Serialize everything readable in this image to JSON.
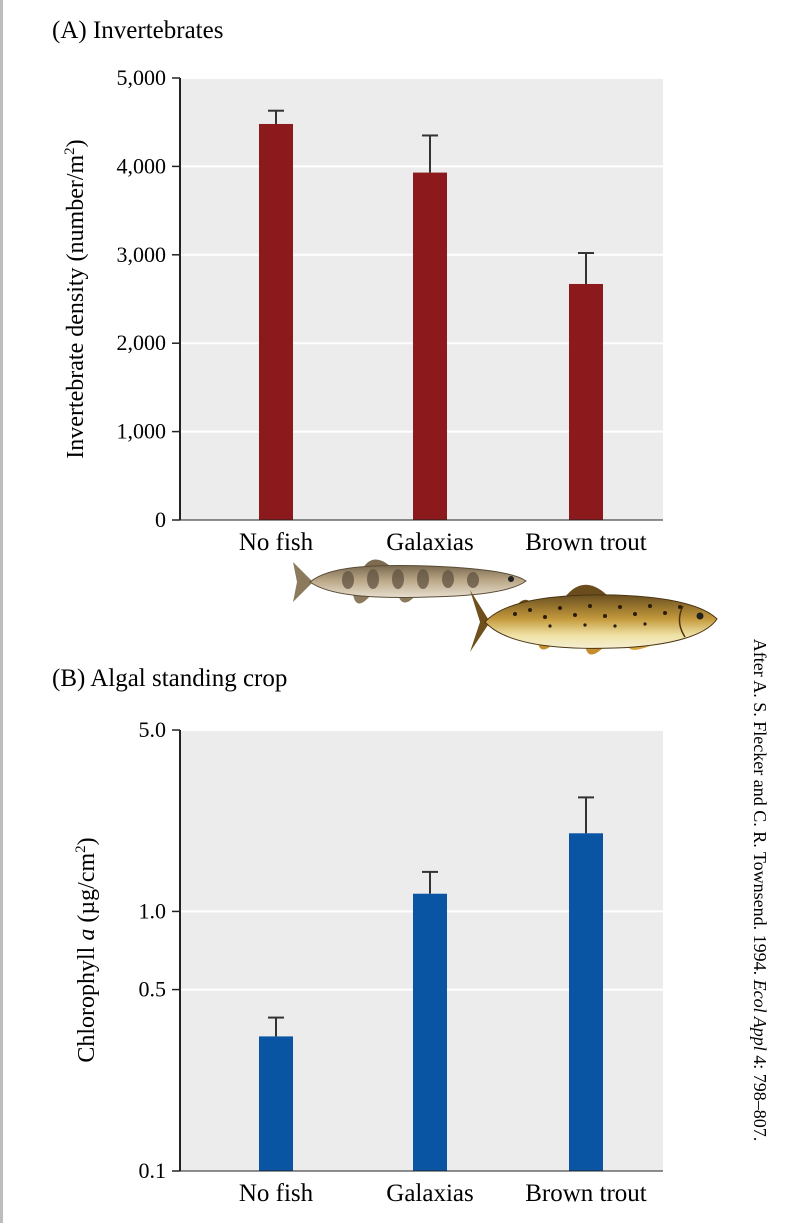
{
  "credit": {
    "prefix": "After A. S. Flecker and C. R. Townsend. 1994. ",
    "journal": "Ecol Appl",
    "suffix": " 4: 798–807."
  },
  "colors": {
    "panel_background": "#ececec",
    "gridline": "#ffffff",
    "invertebrate_bars": "#8c1a1c",
    "chlorophyll_bars": "#0a54a4",
    "error_bars": "#333333"
  },
  "illustrations": {
    "fish_1": "galaxias-fish",
    "fish_2": "brown-trout-fish"
  },
  "chart_data": [
    {
      "type": "bar",
      "title": "(A)  Invertebrates",
      "ylabel_prefix": "Invertebrate density (number/m",
      "ylabel_sup": "2",
      "ylabel_suffix": ")",
      "xlabel": "",
      "categories": [
        "No fish",
        "Galaxias",
        "Brown trout"
      ],
      "values": [
        4480,
        3930,
        2670
      ],
      "errors": [
        150,
        420,
        350
      ],
      "ylim": [
        0,
        5000
      ],
      "yticks": [
        0,
        1000,
        2000,
        3000,
        4000,
        5000
      ],
      "ytick_labels": [
        "0",
        "1,000",
        "2,000",
        "3,000",
        "4,000",
        "5,000"
      ],
      "scale": "linear",
      "grid": true,
      "bar_color": "#8c1a1c"
    },
    {
      "type": "bar",
      "title": "(B)  Algal standing crop",
      "ylabel_prefix": "Chlorophyll ",
      "ylabel_italic": "a",
      "ylabel_mid": " (µg/cm",
      "ylabel_sup": "2",
      "ylabel_suffix": ")",
      "xlabel": "",
      "categories": [
        "No fish",
        "Galaxias",
        "Brown trout"
      ],
      "values": [
        0.33,
        1.17,
        2.0
      ],
      "error_tops": [
        0.39,
        1.42,
        2.75
      ],
      "ylim": [
        0.1,
        5.0
      ],
      "yticks": [
        0.1,
        0.5,
        1.0,
        5.0
      ],
      "ytick_labels": [
        "0.1",
        "0.5",
        "1.0",
        "5.0"
      ],
      "scale": "log",
      "grid": true,
      "bar_color": "#0a54a4"
    }
  ]
}
